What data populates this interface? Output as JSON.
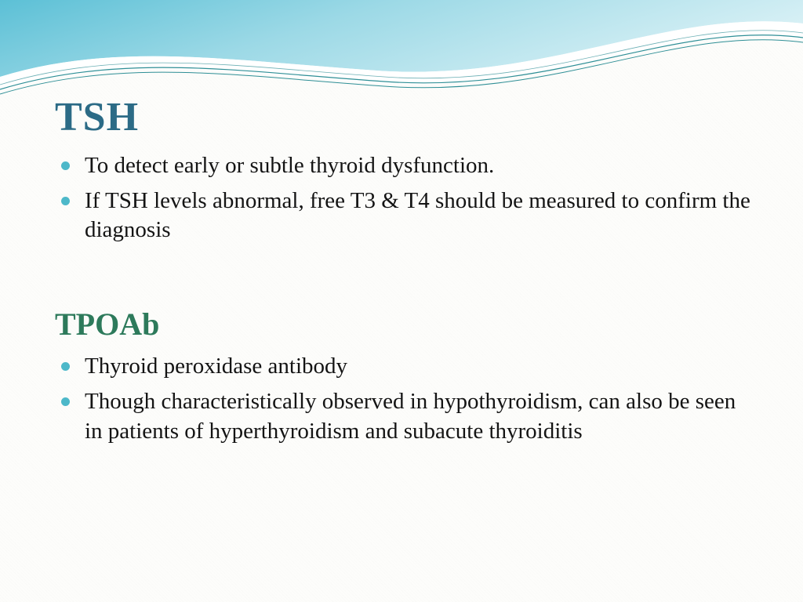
{
  "slide": {
    "background_color": "#fdfdfb",
    "wave": {
      "gradient_light": "#d7f0f5",
      "gradient_mid": "#9cd9e6",
      "gradient_dark": "#5cc0d6",
      "stroke_teal": "#2f8f96",
      "stripe_white": "#ffffff"
    },
    "section1": {
      "title": "TSH",
      "title_color": "#2c6b86",
      "title_fontsize": 52,
      "bullets": [
        "To detect early or subtle thyroid dysfunction.",
        "If TSH levels abnormal, free T3 & T4 should be measured to confirm the diagnosis"
      ]
    },
    "section2": {
      "title": "TPOAb",
      "title_color": "#2d7a5b",
      "title_fontsize": 40,
      "bullets": [
        "Thyroid peroxidase antibody",
        "Though characteristically observed in hypothyroidism, can also be seen in patients of hyperthyroidism and subacute thyroiditis"
      ]
    },
    "bullet_style": {
      "color": "#4db8c9",
      "body_fontsize": 29,
      "body_color": "#141414"
    }
  }
}
